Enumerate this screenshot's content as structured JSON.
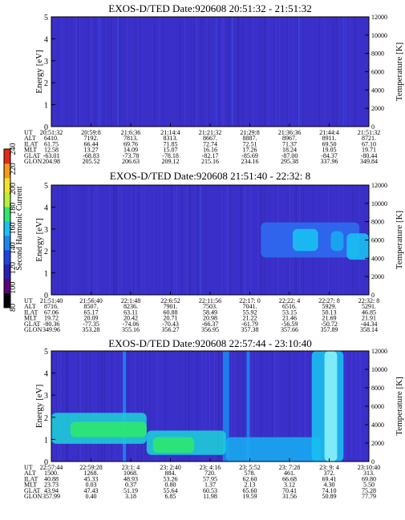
{
  "chart_data": [
    {
      "type": "heatmap",
      "title": "EXOS-D/TED   Date:920608  20:51:32 - 21:51:32",
      "ylabel": "Energy [eV]",
      "y2label": "Temperature [K]",
      "ylim": [
        0,
        5
      ],
      "yticks": [
        "0",
        "1",
        "2",
        "3",
        "4",
        "5"
      ],
      "y2lim": [
        0,
        12000
      ],
      "y2ticks": [
        "0",
        "2000",
        "4000",
        "6000",
        "8000",
        "10000",
        "12000"
      ],
      "table": {
        "rows": [
          {
            "label": "UT",
            "values": [
              "20:51:32",
              "20:59:8",
              "21:6:36",
              "21:14:4",
              "21:21:32",
              "21:29:8",
              "21:36:36",
              "21:44:4",
              "21:51:32"
            ]
          },
          {
            "label": "ALT",
            "values": [
              "6410.",
              "7192.",
              "7813.",
              "8313.",
              "8667.",
              "8887.",
              "8967.",
              "8911.",
              "8721."
            ]
          },
          {
            "label": "ILAT",
            "values": [
              "61.75",
              "66.44",
              "69.76",
              "71.85",
              "72.74",
              "72.51",
              "71.37",
              "69.50",
              "67.10"
            ]
          },
          {
            "label": "MLT",
            "values": [
              "12.58",
              "13.27",
              "14.09",
              "15.07",
              "16.16",
              "17.26",
              "18.24",
              "19.05",
              "19.71"
            ]
          },
          {
            "label": "GLAT",
            "values": [
              "-63.01",
              "-68.83",
              "-73.78",
              "-78.18",
              "-82.17",
              "-85.69",
              "-87.00",
              "-84.37",
              "-80.44"
            ]
          },
          {
            "label": "GLON",
            "values": [
              "204.98",
              "205.52",
              "206.63",
              "209.12",
              "215.16",
              "234.16",
              "295.38",
              "337.96",
              "349.84"
            ]
          }
        ]
      },
      "features": [
        {
          "kind": "stripe",
          "t": 0.15,
          "width": 0.006,
          "color": "#3340d6"
        },
        {
          "kind": "stripe",
          "t": 0.21,
          "width": 0.004,
          "color": "#3a48d8"
        },
        {
          "kind": "stripe",
          "t": 0.52,
          "width": 0.004,
          "color": "#3340d6"
        },
        {
          "kind": "stripe",
          "t": 0.57,
          "width": 0.004,
          "color": "#3a48d8"
        },
        {
          "kind": "stripe",
          "t": 0.78,
          "width": 0.004,
          "color": "#3a48d8"
        },
        {
          "kind": "stripe",
          "t": 0.92,
          "width": 0.006,
          "color": "#3340d6"
        }
      ]
    },
    {
      "type": "heatmap",
      "title": "EXOS-D/TED   Date:920608  21:51:40 - 22:32: 8",
      "ylabel": "Energy [eV]",
      "y2label": "Temperature [K]",
      "ylim": [
        0,
        5
      ],
      "yticks": [
        "0",
        "1",
        "2",
        "3",
        "4",
        "5"
      ],
      "y2lim": [
        0,
        12000
      ],
      "y2ticks": [
        "0",
        "2000",
        "4000",
        "6000",
        "8000",
        "10000",
        "12000"
      ],
      "table": {
        "rows": [
          {
            "label": "UT",
            "values": [
              "21:51:40",
              "21:56:40",
              "22:1:48",
              "22:6:52",
              "22:11:56",
              "22:17: 0",
              "22:22: 4",
              "22:27: 8",
              "22:32: 8"
            ]
          },
          {
            "label": "ALT",
            "values": [
              "8716.",
              "8507.",
              "8236.",
              "7901.",
              "7503.",
              "7041.",
              "6516.",
              "5929.",
              "5291."
            ]
          },
          {
            "label": "ILAT",
            "values": [
              "67.06",
              "65.17",
              "63.11",
              "60.88",
              "58.49",
              "55.92",
              "53.15",
              "50.13",
              "46.85"
            ]
          },
          {
            "label": "MLT",
            "values": [
              "19.72",
              "20.09",
              "20.42",
              "20.71",
              "20.98",
              "21.22",
              "21.46",
              "21.69",
              "21.91"
            ]
          },
          {
            "label": "GLAT",
            "values": [
              "-80.36",
              "-77.35",
              "-74.06",
              "-70.43",
              "-66.37",
              "-61.79",
              "-56.59",
              "-50.72",
              "-44.34"
            ]
          },
          {
            "label": "GLON",
            "values": [
              "349.96",
              "353.28",
              "355.16",
              "356.27",
              "356.95",
              "357.38",
              "357.66",
              "357.89",
              "358.14"
            ]
          }
        ]
      },
      "features": [
        {
          "kind": "stripe",
          "t": 0.47,
          "width": 0.004,
          "color": "#3a48d8"
        },
        {
          "kind": "blob",
          "t0": 0.66,
          "t1": 0.97,
          "e0": 1.7,
          "e1": 3.3,
          "color": "#2d6cf0"
        },
        {
          "kind": "blob",
          "t0": 0.76,
          "t1": 0.84,
          "e0": 2.0,
          "e1": 3.0,
          "color": "#19c0f2"
        },
        {
          "kind": "blob",
          "t0": 0.88,
          "t1": 0.92,
          "e0": 2.0,
          "e1": 2.9,
          "color": "#1aa8f0"
        },
        {
          "kind": "blob",
          "t0": 0.93,
          "t1": 1.0,
          "e0": 1.6,
          "e1": 2.8,
          "color": "#19c0f2"
        }
      ]
    },
    {
      "type": "heatmap",
      "title": "EXOS-D/TED   Date:920608  22:57:44 - 23:10:40",
      "ylabel": "Energy [eV]",
      "y2label": "Temperature [K]",
      "ylim": [
        0,
        5
      ],
      "yticks": [
        "0",
        "1",
        "2",
        "3",
        "4",
        "5"
      ],
      "y2lim": [
        0,
        12000
      ],
      "y2ticks": [
        "0",
        "2000",
        "4000",
        "6000",
        "8000",
        "10000",
        "12000"
      ],
      "table": {
        "rows": [
          {
            "label": "UT",
            "values": [
              "22:57:44",
              "22:59:28",
              "23:1: 4",
              "23: 2:40",
              "23: 4:16",
              "23: 5:52",
              "23: 7:28",
              "23: 9: 4",
              "23:10:40"
            ]
          },
          {
            "label": "ALT",
            "values": [
              "1500.",
              "1268.",
              "1068.",
              "884.",
              "720.",
              "578.",
              "461.",
              "372.",
              "313."
            ]
          },
          {
            "label": "ILAT",
            "values": [
              "40.88",
              "45.33",
              "48.93",
              "53.26",
              "57.95",
              "62.60",
              "66.68",
              "69.41",
              "69.80"
            ]
          },
          {
            "label": "MLT",
            "values": [
              "23.73",
              "0.03",
              "0.37",
              "0.80",
              "1.37",
              "2.13",
              "3.12",
              "4.30",
              "5.50"
            ]
          },
          {
            "label": "GLAT",
            "values": [
              "43.94",
              "47.43",
              "51.19",
              "55.64",
              "60.53",
              "65.60",
              "70.41",
              "74.10",
              "75.28"
            ]
          },
          {
            "label": "GLON",
            "values": [
              "357.99",
              "0.40",
              "3.18",
              "6.85",
              "11.98",
              "19.59",
              "31.56",
              "50.89",
              "77.79"
            ]
          }
        ]
      },
      "features": [
        {
          "kind": "stripe",
          "t": 0.23,
          "width": 0.01,
          "color": "#1c86ee"
        },
        {
          "kind": "stripe",
          "t": 0.55,
          "width": 0.02,
          "color": "#1c86ee"
        },
        {
          "kind": "stripe",
          "t": 0.62,
          "width": 0.01,
          "color": "#1c86ee"
        },
        {
          "kind": "blob",
          "t0": 0.0,
          "t1": 0.3,
          "e0": 0.8,
          "e1": 2.2,
          "color": "#1fcad8"
        },
        {
          "kind": "blob",
          "t0": 0.3,
          "t1": 0.55,
          "e0": 0.3,
          "e1": 1.4,
          "color": "#1fcad8"
        },
        {
          "kind": "blob",
          "t0": 0.06,
          "t1": 0.3,
          "e0": 1.1,
          "e1": 1.8,
          "color": "#2ee870"
        },
        {
          "kind": "blob",
          "t0": 0.32,
          "t1": 0.45,
          "e0": 0.4,
          "e1": 1.1,
          "color": "#2ee870"
        },
        {
          "kind": "blob",
          "t0": 0.55,
          "t1": 0.85,
          "e0": 0.0,
          "e1": 1.1,
          "color": "#1aa8f0"
        },
        {
          "kind": "blob",
          "t0": 0.82,
          "t1": 0.92,
          "e0": 0.0,
          "e1": 5.0,
          "color": "#19c0f2"
        },
        {
          "kind": "blob",
          "t0": 0.86,
          "t1": 0.9,
          "e0": 0.0,
          "e1": 5.0,
          "color": "#8cf2f8"
        }
      ]
    }
  ],
  "colorbar": {
    "label": "Second Harmonic Current",
    "ticks": [
      "80",
      "100",
      "120",
      "140",
      "160",
      "180",
      "200",
      "220",
      "240"
    ],
    "colors": [
      "#000000",
      "#5a007a",
      "#2a1fb5",
      "#1d43e0",
      "#1c86ee",
      "#19c0f2",
      "#2ee870",
      "#b6f233",
      "#f5e12a",
      "#f59a1d",
      "#e62a17"
    ]
  },
  "colors": {
    "background_field": "#3a2fc8"
  }
}
